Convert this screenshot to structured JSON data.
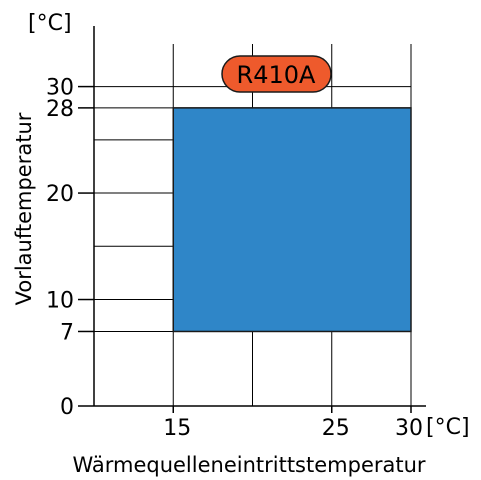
{
  "chart_data": {
    "type": "area",
    "title": "",
    "xlabel": "Wärmequelleneintrittstemperatur",
    "ylabel": "Vorlauftemperatur",
    "x_unit": "[°C]",
    "y_unit": "[°C]",
    "xlim": [
      10,
      30
    ],
    "ylim": [
      0,
      34
    ],
    "x_ticks": [
      15,
      25,
      30
    ],
    "y_ticks": [
      0,
      7,
      10,
      20,
      28,
      30
    ],
    "x_grid": [
      15,
      20,
      25,
      30
    ],
    "y_grid": [
      7,
      10,
      15,
      20,
      25,
      28,
      30
    ],
    "grid": true,
    "series": [
      {
        "name": "R410A",
        "region": {
          "x": [
            15,
            30
          ],
          "y": [
            7,
            28
          ]
        }
      }
    ],
    "colors": {
      "region_fill": "#2f86c8",
      "region_stroke": "#1a1a1a",
      "badge_fill": "#ee5a2c",
      "grid": "#000000"
    }
  }
}
